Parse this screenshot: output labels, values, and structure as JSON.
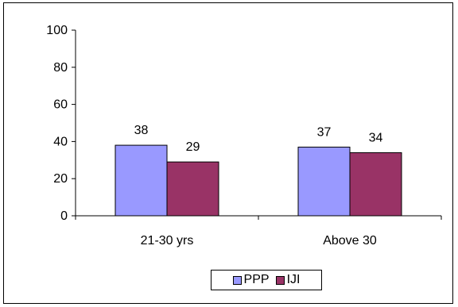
{
  "chart_data": {
    "type": "bar",
    "categories": [
      "21-30 yrs",
      "Above 30"
    ],
    "series": [
      {
        "name": "PPP",
        "values": [
          38,
          37
        ],
        "color": "#9999ff"
      },
      {
        "name": "IJI",
        "values": [
          29,
          34
        ],
        "color": "#993366"
      }
    ],
    "yticks": [
      "0",
      "20",
      "40",
      "60",
      "80",
      "100"
    ],
    "ylim": [
      0,
      100
    ],
    "grid": false,
    "legend_position": "bottom",
    "data_labels": true
  }
}
